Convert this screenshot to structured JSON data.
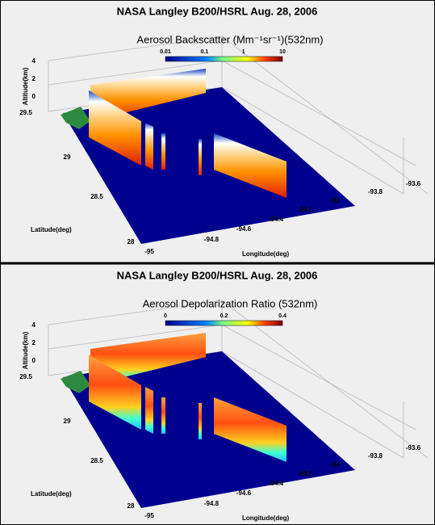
{
  "panels": [
    {
      "title": "NASA Langley B200/HSRL   Aug. 28, 2006",
      "subtitle": "Aerosol Backscatter (Mm⁻¹sr⁻¹)(532nm)",
      "colorbar_ticks": [
        "0.01",
        "0.1",
        "1",
        "10"
      ],
      "z_label": "Altitude(km)",
      "z_ticks": [
        "4",
        "2",
        "0"
      ],
      "lat_label": "Latitude(deg)",
      "lat_ticks": [
        "29.5",
        "29",
        "28.5",
        "28"
      ],
      "lon_label": "Longitude(deg)",
      "lon_ticks": [
        "-95",
        "-94.8",
        "-94.6",
        "-94.4",
        "-94.2",
        "-94",
        "-93.8",
        "-93.6"
      ]
    },
    {
      "title": "NASA Langley B200/HSRL   Aug. 28, 2006",
      "subtitle": "Aerosol Depolarization Ratio (532nm)",
      "colorbar_ticks": [
        "0",
        "0.2",
        "0.4"
      ],
      "z_label": "Altitude(km)",
      "z_ticks": [
        "4",
        "2",
        "0"
      ],
      "lat_label": "Latitude(deg)",
      "lat_ticks": [
        "29.5",
        "29",
        "28.5",
        "28"
      ],
      "lon_label": "Longitude(deg)",
      "lon_ticks": [
        "-95",
        "-94.8",
        "-94.6",
        "-94.4",
        "-94.2",
        "-94",
        "-93.8",
        "-93.6"
      ]
    }
  ]
}
